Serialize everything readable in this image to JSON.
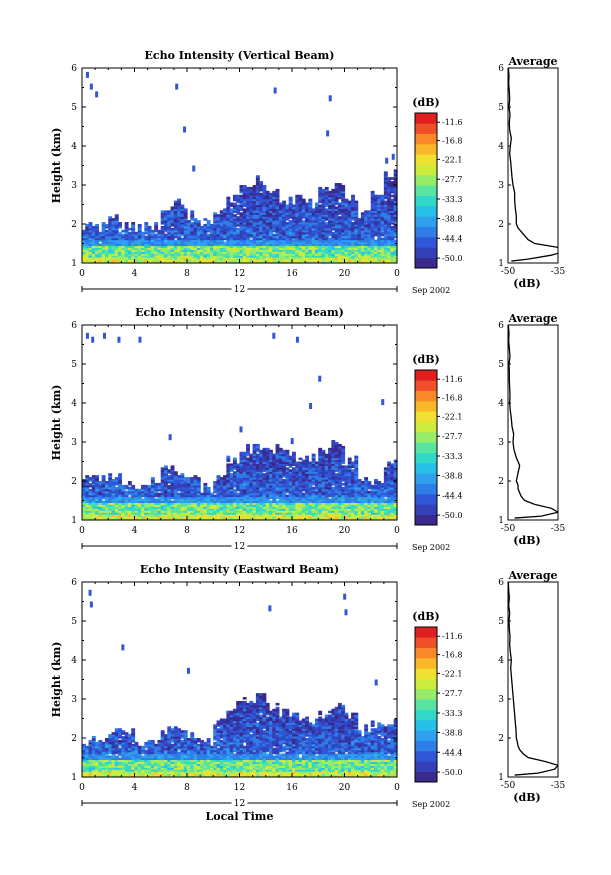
{
  "chart_data": [
    {
      "type": "heatmap",
      "title": "Echo Intensity (Vertical Beam)",
      "ylabel": "Height (km)",
      "xlabel": "",
      "x_ticks": [
        "0",
        "4",
        "8",
        "12",
        "16",
        "20",
        "0"
      ],
      "xlim": [
        0,
        24
      ],
      "y_ticks": [
        "1",
        "2",
        "3",
        "4",
        "5",
        "6"
      ],
      "ylim": [
        1,
        6
      ],
      "date_center": "12",
      "date_label": "Sep 2002",
      "colorbar": {
        "unit": "(dB)",
        "ticks": [
          "-11.6",
          "-16.8",
          "-22.1",
          "-27.7",
          "-33.3",
          "-38.8",
          "-44.4",
          "-50.0"
        ],
        "range": [
          -52.8,
          -9
        ]
      },
      "cloud_top_km": [
        1.9,
        1.9,
        2.1,
        2.0,
        1.9,
        1.9,
        2.3,
        2.5,
        2.2,
        2.0,
        2.3,
        2.6,
        3.0,
        3.1,
        2.8,
        2.6,
        2.6,
        2.5,
        2.8,
        3.0,
        2.6,
        2.2,
        2.8,
        3.3
      ],
      "sparse_points": [
        [
          0.3,
          5.8
        ],
        [
          0.6,
          5.5
        ],
        [
          1.0,
          5.3
        ],
        [
          7.1,
          5.5
        ],
        [
          7.7,
          4.4
        ],
        [
          8.4,
          3.4
        ],
        [
          14.6,
          5.4
        ],
        [
          18.8,
          5.2
        ],
        [
          18.6,
          4.3
        ],
        [
          23.1,
          3.6
        ],
        [
          23.6,
          3.7
        ]
      ],
      "average_profile": {
        "title": "Average",
        "xlabel": "(dB)",
        "x_ticks": [
          "-50",
          "-35"
        ],
        "xlim": [
          -50,
          -35
        ],
        "y_ticks": [
          "1",
          "2",
          "3",
          "4",
          "5",
          "6"
        ],
        "ylim": [
          1,
          6
        ],
        "height_km": [
          1.05,
          1.1,
          1.2,
          1.3,
          1.4,
          1.5,
          1.6,
          1.7,
          1.8,
          1.9,
          2.0,
          2.2,
          2.4,
          2.6,
          2.8,
          3.0,
          3.2,
          3.4,
          3.6,
          3.8,
          4.0,
          4.2,
          4.4,
          4.6,
          4.8,
          5.0,
          5.2,
          5.4,
          5.6,
          5.8,
          6.0
        ],
        "value_db": [
          -49,
          -44,
          -37,
          -33,
          -35,
          -42,
          -44,
          -45,
          -46,
          -47,
          -47.5,
          -47.5,
          -47.8,
          -48,
          -48,
          -48.5,
          -48.8,
          -49,
          -49.2,
          -49.5,
          -49.3,
          -49,
          -49.5,
          -49.6,
          -49.4,
          -49.7,
          -49.5,
          -49.6,
          -49.8,
          -49.7,
          -49.9
        ]
      }
    },
    {
      "type": "heatmap",
      "title": "Echo Intensity (Northward Beam)",
      "ylabel": "Height (km)",
      "xlabel": "",
      "x_ticks": [
        "0",
        "4",
        "8",
        "12",
        "16",
        "20",
        "0"
      ],
      "xlim": [
        0,
        24
      ],
      "y_ticks": [
        "1",
        "2",
        "3",
        "4",
        "5",
        "6"
      ],
      "ylim": [
        1,
        6
      ],
      "date_center": "12",
      "date_label": "Sep 2002",
      "colorbar": {
        "unit": "(dB)",
        "ticks": [
          "-11.6",
          "-16.8",
          "-22.1",
          "-27.7",
          "-33.3",
          "-38.8",
          "-44.4",
          "-50.0"
        ],
        "range": [
          -52.8,
          -9
        ]
      },
      "cloud_top_km": [
        2.1,
        2.0,
        2.1,
        2.0,
        1.9,
        2.0,
        2.4,
        2.2,
        2.0,
        1.8,
        2.1,
        2.5,
        2.8,
        2.9,
        2.8,
        2.7,
        2.6,
        2.6,
        2.8,
        2.9,
        2.5,
        2.1,
        2.0,
        2.4
      ],
      "sparse_points": [
        [
          0.3,
          5.7
        ],
        [
          0.7,
          5.6
        ],
        [
          1.6,
          5.7
        ],
        [
          2.7,
          5.6
        ],
        [
          4.3,
          5.6
        ],
        [
          14.5,
          5.7
        ],
        [
          16.3,
          5.6
        ],
        [
          18.0,
          4.6
        ],
        [
          17.3,
          3.9
        ],
        [
          6.6,
          3.1
        ],
        [
          12.0,
          3.3
        ],
        [
          15.9,
          3.0
        ],
        [
          22.8,
          4.0
        ]
      ],
      "average_profile": {
        "title": "Average",
        "xlabel": "(dB)",
        "x_ticks": [
          "-50",
          "-35"
        ],
        "xlim": [
          -50,
          -35
        ],
        "y_ticks": [
          "1",
          "2",
          "3",
          "4",
          "5",
          "6"
        ],
        "ylim": [
          1,
          6
        ],
        "height_km": [
          1.05,
          1.1,
          1.2,
          1.3,
          1.4,
          1.5,
          1.6,
          1.7,
          1.8,
          1.9,
          2.0,
          2.2,
          2.4,
          2.6,
          2.8,
          3.0,
          3.2,
          3.4,
          3.6,
          3.8,
          4.0,
          4.2,
          4.4,
          4.6,
          4.8,
          5.0,
          5.2,
          5.4,
          5.6,
          5.8,
          6.0
        ],
        "value_db": [
          -48,
          -40,
          -35,
          -37,
          -42,
          -45,
          -46,
          -46.5,
          -47,
          -47,
          -47.5,
          -47,
          -46.5,
          -47.5,
          -48.2,
          -48.5,
          -48.3,
          -48.8,
          -49,
          -49.3,
          -49.5,
          -49.4,
          -49.5,
          -49.6,
          -49.6,
          -49.7,
          -49.4,
          -49.6,
          -49.8,
          -49.7,
          -49.9
        ]
      }
    },
    {
      "type": "heatmap",
      "title": "Echo Intensity (Eastward Beam)",
      "ylabel": "Height (km)",
      "xlabel": "Local Time",
      "x_ticks": [
        "0",
        "4",
        "8",
        "12",
        "16",
        "20",
        "0"
      ],
      "xlim": [
        0,
        24
      ],
      "y_ticks": [
        "1",
        "2",
        "3",
        "4",
        "5",
        "6"
      ],
      "ylim": [
        1,
        6
      ],
      "date_center": "12",
      "date_label": "Sep 2002",
      "colorbar": {
        "unit": "(dB)",
        "ticks": [
          "-11.6",
          "-16.8",
          "-22.1",
          "-27.7",
          "-33.3",
          "-38.8",
          "-44.4",
          "-50.0"
        ],
        "range": [
          -52.8,
          -9
        ]
      },
      "cloud_top_km": [
        1.9,
        1.9,
        2.2,
        2.1,
        1.9,
        1.9,
        2.2,
        2.3,
        2.0,
        1.9,
        2.4,
        2.8,
        2.9,
        3.0,
        2.8,
        2.6,
        2.5,
        2.4,
        2.6,
        2.8,
        2.5,
        2.2,
        2.3,
        2.4
      ],
      "sparse_points": [
        [
          0.5,
          5.7
        ],
        [
          0.6,
          5.4
        ],
        [
          3.0,
          4.3
        ],
        [
          8.0,
          3.7
        ],
        [
          14.2,
          5.3
        ],
        [
          19.9,
          5.6
        ],
        [
          20.0,
          5.2
        ],
        [
          22.3,
          3.4
        ]
      ],
      "average_profile": {
        "title": "Average",
        "xlabel": "(dB)",
        "x_ticks": [
          "-50",
          "-35"
        ],
        "xlim": [
          -50,
          -35
        ],
        "y_ticks": [
          "1",
          "2",
          "3",
          "4",
          "5",
          "6"
        ],
        "ylim": [
          1,
          6
        ],
        "height_km": [
          1.05,
          1.1,
          1.2,
          1.3,
          1.4,
          1.5,
          1.6,
          1.7,
          1.8,
          1.9,
          2.0,
          2.2,
          2.4,
          2.6,
          2.8,
          3.0,
          3.2,
          3.4,
          3.6,
          3.8,
          4.0,
          4.2,
          4.4,
          4.6,
          4.8,
          5.0,
          5.2,
          5.4,
          5.6,
          5.8,
          6.0
        ],
        "value_db": [
          -48,
          -41,
          -36,
          -35,
          -39,
          -44,
          -45.5,
          -46.5,
          -47,
          -47.2,
          -47.5,
          -47.6,
          -47.8,
          -48,
          -48.2,
          -48.4,
          -48.6,
          -48.8,
          -49,
          -49.2,
          -49,
          -49.3,
          -49.5,
          -49.4,
          -49.6,
          -49.7,
          -49.5,
          -49.8,
          -49.6,
          -49.8,
          -49.9
        ]
      }
    }
  ]
}
